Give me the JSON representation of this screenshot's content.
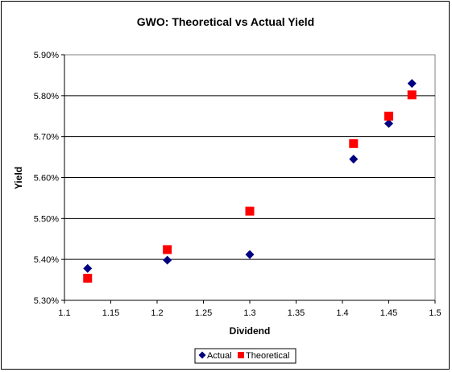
{
  "chart_data": {
    "type": "scatter",
    "title": "GWO: Theoretical vs Actual Yield",
    "xlabel": "Dividend",
    "ylabel": "Yield",
    "xlim": [
      1.1,
      1.5
    ],
    "ylim": [
      5.3,
      5.9
    ],
    "x_ticks": [
      1.1,
      1.15,
      1.2,
      1.25,
      1.3,
      1.35,
      1.4,
      1.45,
      1.5
    ],
    "x_tick_labels": [
      "1.1",
      "1.15",
      "1.2",
      "1.25",
      "1.3",
      "1.35",
      "1.4",
      "1.45",
      "1.5"
    ],
    "y_ticks": [
      5.3,
      5.4,
      5.5,
      5.6,
      5.7,
      5.8,
      5.9
    ],
    "y_tick_labels": [
      "5.30%",
      "5.40%",
      "5.50%",
      "5.60%",
      "5.70%",
      "5.80%",
      "5.90%"
    ],
    "grid": "horizontal",
    "legend_position": "bottom",
    "series": [
      {
        "name": "Actual",
        "marker": "diamond",
        "color": "#000080",
        "points": [
          {
            "x": 1.125,
            "y": 5.378
          },
          {
            "x": 1.211,
            "y": 5.398
          },
          {
            "x": 1.3,
            "y": 5.412
          },
          {
            "x": 1.412,
            "y": 5.645
          },
          {
            "x": 1.45,
            "y": 5.732
          },
          {
            "x": 1.475,
            "y": 5.83
          }
        ]
      },
      {
        "name": "Theoretical",
        "marker": "square",
        "color": "#ff0000",
        "points": [
          {
            "x": 1.125,
            "y": 5.354
          },
          {
            "x": 1.211,
            "y": 5.424
          },
          {
            "x": 1.3,
            "y": 5.518
          },
          {
            "x": 1.412,
            "y": 5.683
          },
          {
            "x": 1.45,
            "y": 5.75
          },
          {
            "x": 1.475,
            "y": 5.802
          }
        ]
      }
    ]
  }
}
